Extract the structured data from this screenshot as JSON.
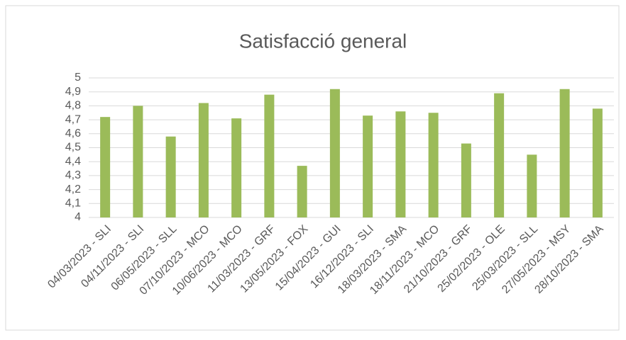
{
  "chart_data": {
    "type": "bar",
    "title": "Satisfacció general",
    "categories": [
      "04/03/2023 - SLI",
      "04/11/2023 - SLI",
      "06/05/2023 - SLL",
      "07/10/2023 - MCO",
      "10/06/2023 - MCO",
      "11/03/2023 - GRF",
      "13/05/2023 - FOX",
      "15/04/2023 - GUI",
      "16/12/2023 - SLI",
      "18/03/2023 - SMA",
      "18/11/2023 - MCO",
      "21/10/2023 - GRF",
      "25/02/2023 - OLE",
      "25/03/2023 - SLL",
      "27/05/2023 - MSY",
      "28/10/2023 - SMA"
    ],
    "values": [
      4.72,
      4.8,
      4.58,
      4.82,
      4.71,
      4.88,
      4.37,
      4.92,
      4.73,
      4.76,
      4.75,
      4.53,
      4.89,
      4.45,
      4.92,
      4.78
    ],
    "color": "#9bbb59",
    "ylim": [
      4,
      5
    ],
    "yticks": [
      4,
      {
        "value": 4.1,
        "label": "4,1"
      },
      {
        "value": 4.2,
        "label": "4,2"
      },
      {
        "value": 4.3,
        "label": "4,3"
      },
      {
        "value": 4.4,
        "label": "4,4"
      },
      {
        "value": 4.5,
        "label": "4,5"
      },
      {
        "value": 4.6,
        "label": "4,6"
      },
      {
        "value": 4.7,
        "label": "4,7"
      },
      {
        "value": 4.8,
        "label": "4,8"
      },
      {
        "value": 4.9,
        "label": "4,9"
      },
      5
    ],
    "grid": true
  }
}
